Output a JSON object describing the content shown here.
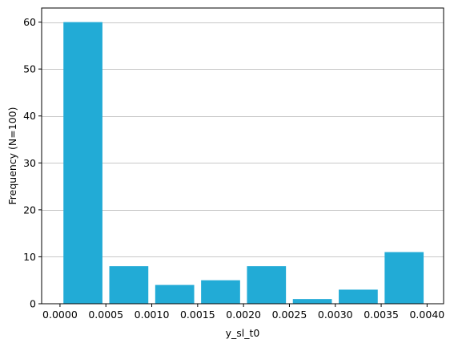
{
  "chart_data": {
    "type": "bar",
    "title": "",
    "xlabel": "y_sl_t0",
    "ylabel": "Frequency (N=100)",
    "bin_edges": [
      0.0,
      0.0005,
      0.001,
      0.0015,
      0.002,
      0.0025,
      0.003,
      0.0035,
      0.004
    ],
    "values": [
      60,
      8,
      4,
      5,
      8,
      1,
      3,
      11
    ],
    "xlim": [
      -0.0002,
      0.00418
    ],
    "ylim": [
      0,
      63
    ],
    "xticks": [
      0.0,
      0.0005,
      0.001,
      0.0015,
      0.002,
      0.0025,
      0.003,
      0.0035,
      0.004
    ],
    "xtick_labels": [
      "0.0000",
      "0.0005",
      "0.0010",
      "0.0015",
      "0.0020",
      "0.0025",
      "0.0030",
      "0.0035",
      "0.0040"
    ],
    "yticks": [
      0,
      10,
      20,
      30,
      40,
      50,
      60
    ],
    "ytick_labels": [
      "0",
      "10",
      "20",
      "30",
      "40",
      "50",
      "60"
    ],
    "grid": "y",
    "bar_color": "#22abd6",
    "grid_color": "#c8c8c8"
  }
}
